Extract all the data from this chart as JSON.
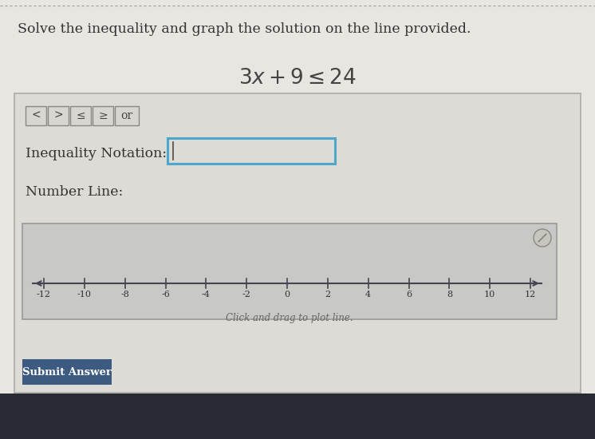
{
  "bg_color": "#c8c8c8",
  "page_bg": "#e8e6e0",
  "title_text": "Solve the inequality and graph the solution on the line provided.",
  "equation_text": "$3x + 9 \\leq 24$",
  "buttons": [
    "<",
    ">",
    "≤",
    "≥",
    "or"
  ],
  "inequality_label": "Inequality Notation:",
  "number_line_label": "Number Line:",
  "number_line_ticks": [
    -12,
    -10,
    -8,
    -6,
    -4,
    -2,
    0,
    2,
    4,
    6,
    8,
    10,
    12
  ],
  "number_line_caption": "Click and drag to plot line.",
  "submit_label": "Submit Answer",
  "submit_bg": "#3d5a80",
  "submit_text_color": "#ffffff",
  "panel_border_color": "#aaaaaa",
  "input_border_color": "#4da6cc",
  "equation_color": "#444444",
  "title_color": "#333333",
  "label_color": "#333333",
  "number_line_bg": "#c8c8c4",
  "number_line_border": "#999999",
  "dashed_line_color": "#999999",
  "bottom_bar_color": "#2a2a35"
}
